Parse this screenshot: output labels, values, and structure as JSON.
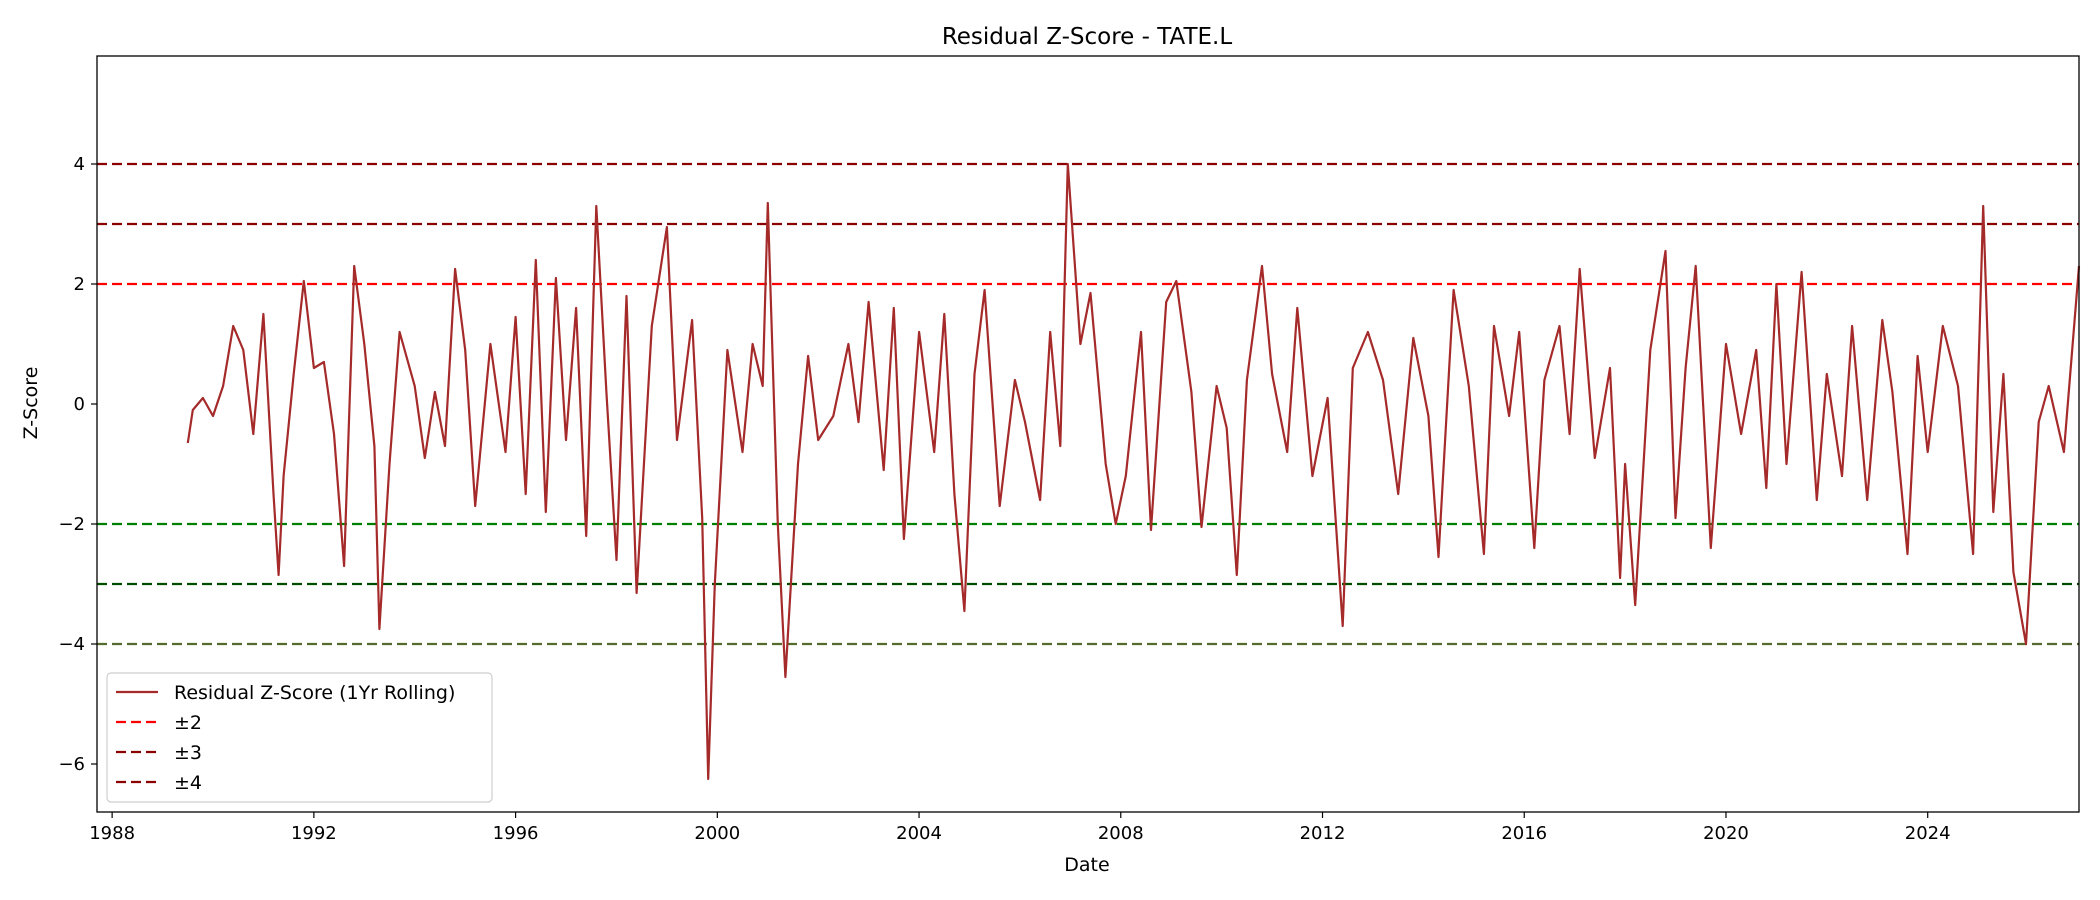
{
  "chart_data": {
    "type": "line",
    "title": "Residual Z-Score - TATE.L",
    "xlabel": "Date",
    "ylabel": "Z-Score",
    "xlim": [
      1987.7,
      2027.0
    ],
    "ylim": [
      -6.8,
      5.8
    ],
    "x_ticks": [
      1988,
      1992,
      1996,
      2000,
      2004,
      2008,
      2012,
      2016,
      2020,
      2024
    ],
    "y_ticks": [
      -6,
      -4,
      -2,
      0,
      2,
      4
    ],
    "y_tick_labels": [
      "−6",
      "−4",
      "−2",
      "0",
      "2",
      "4"
    ],
    "grid": false,
    "legend_position": "lower-left",
    "series": [
      {
        "name": "Residual Z-Score (1Yr Rolling)",
        "color": "#a52a2a",
        "points": [
          [
            1989.5,
            -0.65
          ],
          [
            1989.6,
            -0.1
          ],
          [
            1989.8,
            0.1
          ],
          [
            1990.0,
            -0.2
          ],
          [
            1990.2,
            0.3
          ],
          [
            1990.4,
            1.3
          ],
          [
            1990.6,
            0.9
          ],
          [
            1990.8,
            -0.5
          ],
          [
            1991.0,
            1.5
          ],
          [
            1991.2,
            -1.5
          ],
          [
            1991.3,
            -2.85
          ],
          [
            1991.4,
            -1.2
          ],
          [
            1991.6,
            0.5
          ],
          [
            1991.8,
            2.05
          ],
          [
            1992.0,
            0.6
          ],
          [
            1992.2,
            0.7
          ],
          [
            1992.4,
            -0.5
          ],
          [
            1992.6,
            -2.7
          ],
          [
            1992.8,
            2.3
          ],
          [
            1993.0,
            1.0
          ],
          [
            1993.2,
            -0.7
          ],
          [
            1993.3,
            -3.75
          ],
          [
            1993.5,
            -1.0
          ],
          [
            1993.7,
            1.2
          ],
          [
            1994.0,
            0.3
          ],
          [
            1994.2,
            -0.9
          ],
          [
            1994.4,
            0.2
          ],
          [
            1994.6,
            -0.7
          ],
          [
            1994.8,
            2.25
          ],
          [
            1995.0,
            0.9
          ],
          [
            1995.2,
            -1.7
          ],
          [
            1995.5,
            1.0
          ],
          [
            1995.8,
            -0.8
          ],
          [
            1996.0,
            1.45
          ],
          [
            1996.2,
            -1.5
          ],
          [
            1996.4,
            2.4
          ],
          [
            1996.6,
            -1.8
          ],
          [
            1996.8,
            2.1
          ],
          [
            1997.0,
            -0.6
          ],
          [
            1997.2,
            1.6
          ],
          [
            1997.4,
            -2.2
          ],
          [
            1997.6,
            3.3
          ],
          [
            1997.8,
            0.2
          ],
          [
            1998.0,
            -2.6
          ],
          [
            1998.2,
            1.8
          ],
          [
            1998.4,
            -3.15
          ],
          [
            1998.7,
            1.3
          ],
          [
            1999.0,
            2.95
          ],
          [
            1999.2,
            -0.6
          ],
          [
            1999.5,
            1.4
          ],
          [
            1999.7,
            -1.9
          ],
          [
            1999.82,
            -6.25
          ],
          [
            1999.95,
            -3.0
          ],
          [
            2000.2,
            0.9
          ],
          [
            2000.5,
            -0.8
          ],
          [
            2000.7,
            1.0
          ],
          [
            2000.9,
            0.3
          ],
          [
            2001.0,
            3.35
          ],
          [
            2001.2,
            -2.0
          ],
          [
            2001.35,
            -4.55
          ],
          [
            2001.6,
            -1.0
          ],
          [
            2001.8,
            0.8
          ],
          [
            2002.0,
            -0.6
          ],
          [
            2002.3,
            -0.2
          ],
          [
            2002.6,
            1.0
          ],
          [
            2002.8,
            -0.3
          ],
          [
            2003.0,
            1.7
          ],
          [
            2003.3,
            -1.1
          ],
          [
            2003.5,
            1.6
          ],
          [
            2003.7,
            -2.25
          ],
          [
            2004.0,
            1.2
          ],
          [
            2004.3,
            -0.8
          ],
          [
            2004.5,
            1.5
          ],
          [
            2004.7,
            -1.5
          ],
          [
            2004.9,
            -3.45
          ],
          [
            2005.1,
            0.5
          ],
          [
            2005.3,
            1.9
          ],
          [
            2005.6,
            -1.7
          ],
          [
            2005.9,
            0.4
          ],
          [
            2006.1,
            -0.3
          ],
          [
            2006.4,
            -1.6
          ],
          [
            2006.6,
            1.2
          ],
          [
            2006.8,
            -0.7
          ],
          [
            2006.95,
            4.0
          ],
          [
            2007.2,
            1.0
          ],
          [
            2007.4,
            1.85
          ],
          [
            2007.7,
            -1.0
          ],
          [
            2007.9,
            -2.0
          ],
          [
            2008.1,
            -1.2
          ],
          [
            2008.4,
            1.2
          ],
          [
            2008.6,
            -2.1
          ],
          [
            2008.9,
            1.7
          ],
          [
            2009.1,
            2.05
          ],
          [
            2009.4,
            0.2
          ],
          [
            2009.6,
            -2.05
          ],
          [
            2009.9,
            0.3
          ],
          [
            2010.1,
            -0.4
          ],
          [
            2010.3,
            -2.85
          ],
          [
            2010.5,
            0.4
          ],
          [
            2010.8,
            2.3
          ],
          [
            2011.0,
            0.5
          ],
          [
            2011.3,
            -0.8
          ],
          [
            2011.5,
            1.6
          ],
          [
            2011.8,
            -1.2
          ],
          [
            2012.1,
            0.1
          ],
          [
            2012.4,
            -3.7
          ],
          [
            2012.6,
            0.6
          ],
          [
            2012.9,
            1.2
          ],
          [
            2013.2,
            0.4
          ],
          [
            2013.5,
            -1.5
          ],
          [
            2013.8,
            1.1
          ],
          [
            2014.1,
            -0.2
          ],
          [
            2014.3,
            -2.55
          ],
          [
            2014.6,
            1.9
          ],
          [
            2014.9,
            0.3
          ],
          [
            2015.2,
            -2.5
          ],
          [
            2015.4,
            1.3
          ],
          [
            2015.7,
            -0.2
          ],
          [
            2015.9,
            1.2
          ],
          [
            2016.2,
            -2.4
          ],
          [
            2016.4,
            0.4
          ],
          [
            2016.7,
            1.3
          ],
          [
            2016.9,
            -0.5
          ],
          [
            2017.1,
            2.25
          ],
          [
            2017.4,
            -0.9
          ],
          [
            2017.7,
            0.6
          ],
          [
            2017.9,
            -2.9
          ],
          [
            2018.0,
            -1.0
          ],
          [
            2018.2,
            -3.35
          ],
          [
            2018.5,
            0.9
          ],
          [
            2018.8,
            2.55
          ],
          [
            2019.0,
            -1.9
          ],
          [
            2019.2,
            0.6
          ],
          [
            2019.4,
            2.3
          ],
          [
            2019.7,
            -2.4
          ],
          [
            2020.0,
            1.0
          ],
          [
            2020.3,
            -0.5
          ],
          [
            2020.6,
            0.9
          ],
          [
            2020.8,
            -1.4
          ],
          [
            2021.0,
            2.0
          ],
          [
            2021.2,
            -1.0
          ],
          [
            2021.5,
            2.2
          ],
          [
            2021.8,
            -1.6
          ],
          [
            2022.0,
            0.5
          ],
          [
            2022.3,
            -1.2
          ],
          [
            2022.5,
            1.3
          ],
          [
            2022.8,
            -1.6
          ],
          [
            2023.1,
            1.4
          ],
          [
            2023.3,
            0.2
          ],
          [
            2023.6,
            -2.5
          ],
          [
            2023.8,
            0.8
          ],
          [
            2024.0,
            -0.8
          ],
          [
            2024.3,
            1.3
          ],
          [
            2024.6,
            0.3
          ],
          [
            2024.9,
            -2.5
          ],
          [
            2025.1,
            3.3
          ],
          [
            2025.3,
            -1.8
          ],
          [
            2025.5,
            0.5
          ],
          [
            2025.7,
            -2.8
          ],
          [
            2025.95,
            -4.0
          ],
          [
            2026.2,
            -0.3
          ],
          [
            2026.4,
            0.3
          ],
          [
            2026.7,
            -0.8
          ],
          [
            2027.0,
            2.3
          ]
        ]
      }
    ],
    "reference_lines": [
      {
        "y": 2,
        "color": "#ff0000",
        "style": "dashed"
      },
      {
        "y": 3,
        "color": "#8b0000",
        "style": "dashed"
      },
      {
        "y": 4,
        "color": "#8b0000",
        "style": "dashed"
      },
      {
        "y": -2,
        "color": "#008000",
        "style": "dashed"
      },
      {
        "y": -3,
        "color": "#004d00",
        "style": "dashed"
      },
      {
        "y": -4,
        "color": "#556b2f",
        "style": "dashed"
      }
    ],
    "legend": [
      {
        "label": "Residual Z-Score (1Yr Rolling)",
        "color": "#a52a2a",
        "style": "solid"
      },
      {
        "label": "±2",
        "color": "#ff0000",
        "style": "dashed"
      },
      {
        "label": "±3",
        "color": "#8b0000",
        "style": "dashed"
      },
      {
        "label": "±4",
        "color": "#8b0000",
        "style": "dashed"
      }
    ]
  }
}
